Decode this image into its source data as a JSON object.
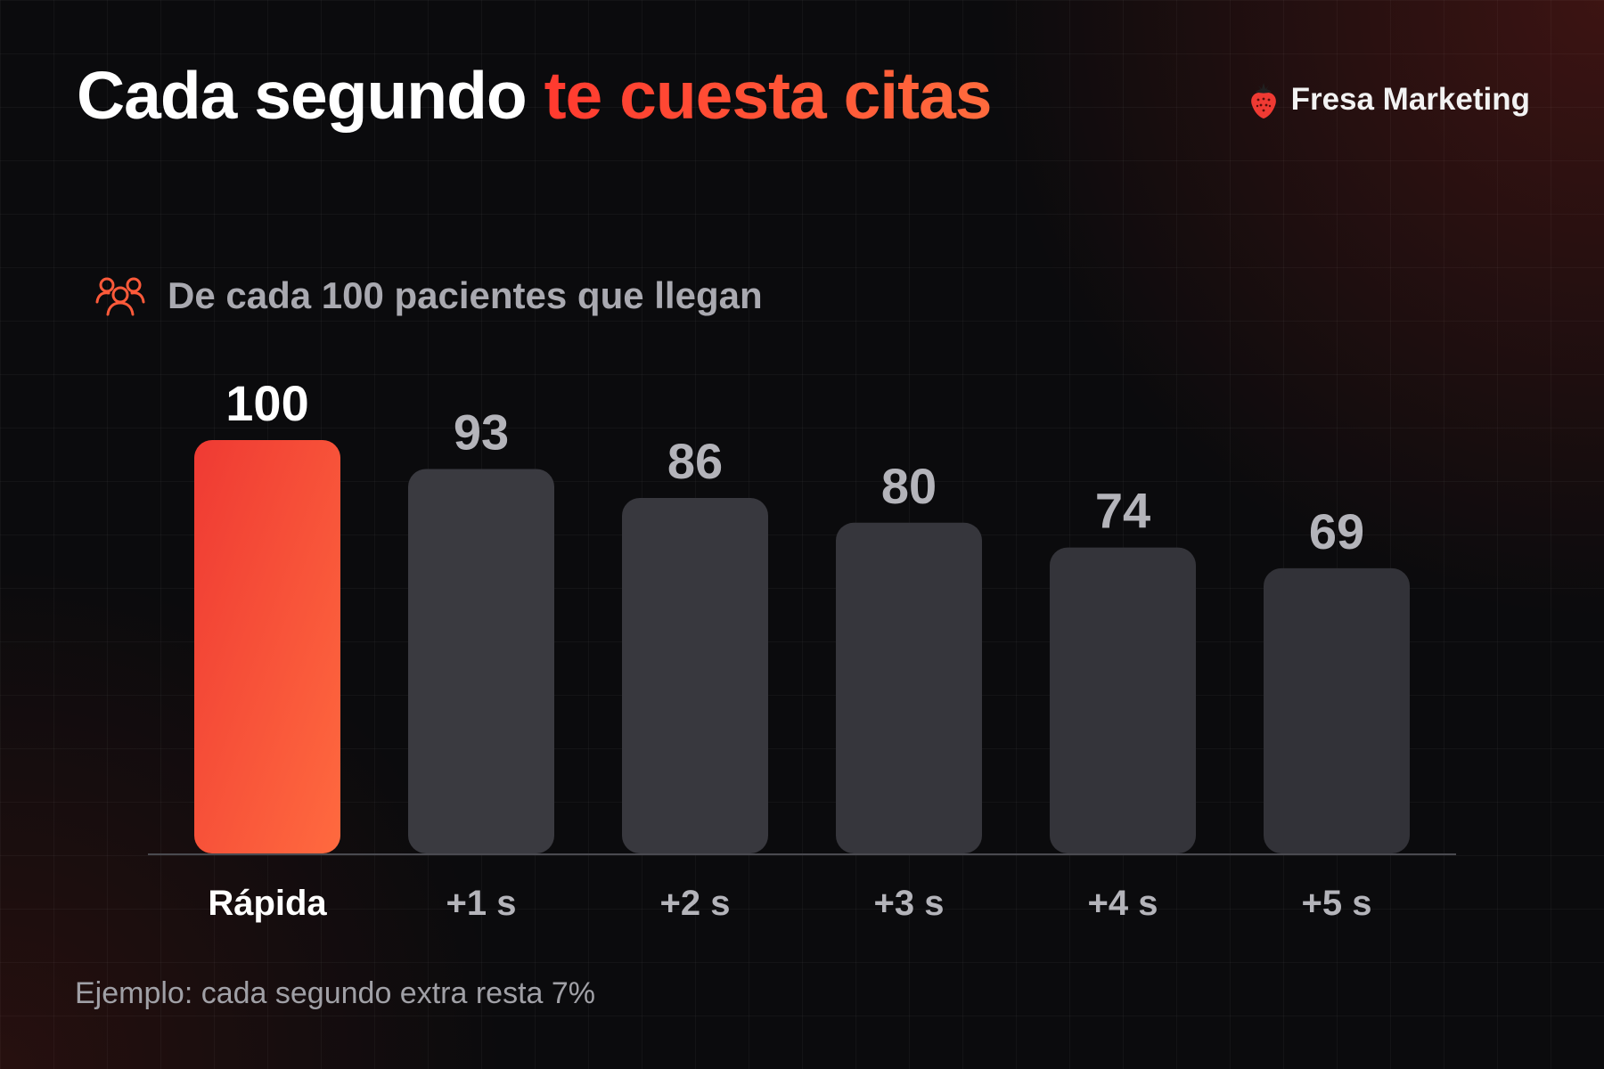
{
  "header": {
    "title_part1": "Cada segundo",
    "title_part2": "te cuesta citas",
    "brand_name": "Fresa Marketing",
    "brand_icon": "strawberry-icon"
  },
  "subtitle": {
    "icon": "users-group-icon",
    "text": "De cada 100 pacientes que llegan"
  },
  "footnote": "Ejemplo: cada segundo extra resta 7%",
  "colors": {
    "accent_start": "#ef3a33",
    "accent_end": "#ff6a3f",
    "bar_dark": "#3b3b41",
    "value_highlight": "#ffffff",
    "value_muted": "#b4b4ba",
    "label_muted": "#b4b4ba"
  },
  "chart_data": {
    "type": "bar",
    "title": "",
    "xlabel": "",
    "ylabel": "",
    "categories": [
      "Rápida",
      "+1 s",
      "+2 s",
      "+3 s",
      "+4 s",
      "+5 s"
    ],
    "values": [
      100,
      93,
      86,
      80,
      74,
      69
    ],
    "value_labels": [
      "100",
      "93",
      "86",
      "80",
      "74",
      "69"
    ],
    "ylim": [
      0,
      100
    ],
    "grid": false,
    "legend": "none",
    "highlight_index": 0
  }
}
